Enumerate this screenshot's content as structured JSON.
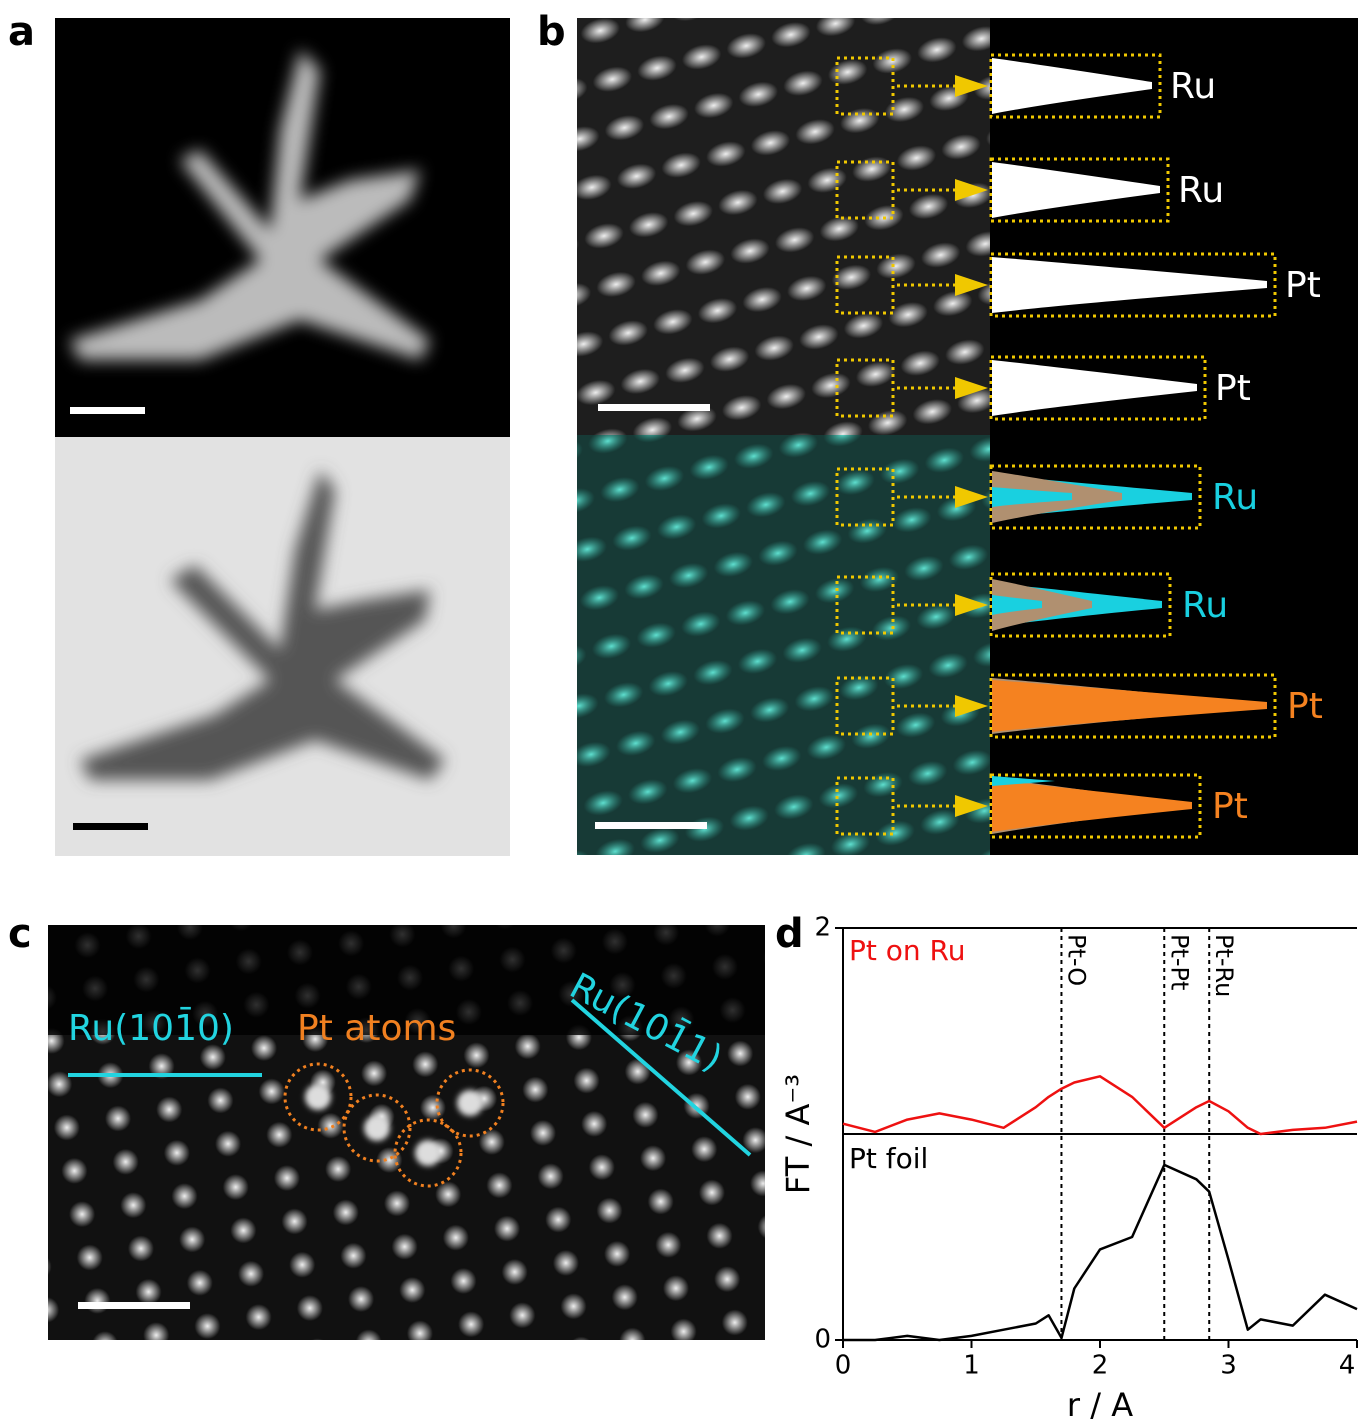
{
  "panels": {
    "a": {
      "label": "a"
    },
    "b": {
      "label": "b",
      "haadf_labels": [
        "Ru",
        "Ru",
        "Pt",
        "Pt"
      ],
      "eels_labels": [
        "Ru",
        "Ru",
        "Pt",
        "Pt"
      ]
    },
    "c": {
      "label": "c",
      "annotations": [
        "Ru(101̄0)",
        "Pt atoms",
        "Ru(101̄1)"
      ]
    }
  },
  "chart_data": {
    "type": "line",
    "panel_label": "d",
    "x_label": "r / A",
    "y_label": "FT / A⁻³",
    "x": [
      0,
      0.25,
      0.5,
      0.75,
      1,
      1.25,
      1.5,
      1.6,
      1.7,
      1.8,
      2,
      2.25,
      2.5,
      2.75,
      2.85,
      3,
      3.15,
      3.25,
      3.5,
      3.75,
      4
    ],
    "series": [
      {
        "name": "Pt on Ru",
        "color": "#ee1111",
        "values": [
          1.05,
          1.01,
          1.07,
          1.1,
          1.07,
          1.03,
          1.13,
          1.18,
          1.22,
          1.25,
          1.28,
          1.18,
          1.03,
          1.13,
          1.16,
          1.11,
          1.03,
          1.0,
          1.02,
          1.03,
          1.06
        ]
      },
      {
        "name": "Pt foil",
        "color": "#000000",
        "values": [
          0,
          0,
          0.02,
          0,
          0.02,
          0.05,
          0.08,
          0.12,
          0.01,
          0.25,
          0.44,
          0.5,
          0.85,
          0.78,
          0.72,
          0.39,
          0.05,
          0.1,
          0.07,
          0.22,
          0.15
        ]
      }
    ],
    "reference_lines": [
      {
        "x": 1.7,
        "label": "Pt-O"
      },
      {
        "x": 2.5,
        "label": "Pt-Pt"
      },
      {
        "x": 2.85,
        "label": "Pt-Ru"
      }
    ],
    "xlim": [
      0,
      4
    ],
    "ylim": [
      0,
      2
    ],
    "xticks": [
      0,
      1,
      2,
      3,
      4
    ],
    "yticks": [
      0,
      2
    ]
  }
}
